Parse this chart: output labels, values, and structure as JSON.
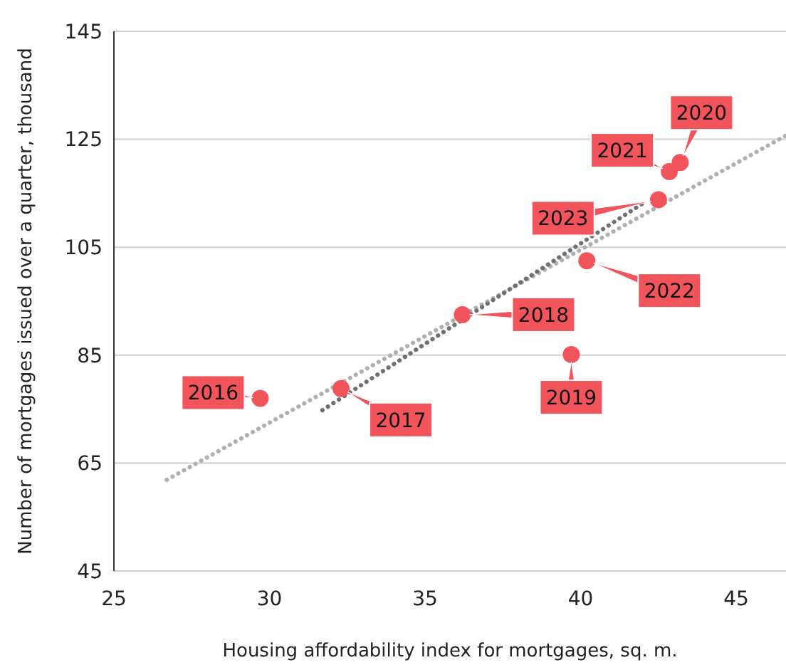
{
  "chart_data": {
    "type": "scatter",
    "xlabel": "Housing affordability index for mortgages, sq. m.",
    "ylabel": "Number of mortgages issued over a quarter, thousand",
    "xlim": [
      25,
      46.6
    ],
    "xticks": [
      25,
      30,
      35,
      40,
      45
    ],
    "ylim": [
      45,
      145
    ],
    "yticks": [
      45,
      65,
      85,
      105,
      125,
      145
    ],
    "grid": "y",
    "series": [
      {
        "type": "line",
        "line_style": "dotted",
        "color": "#b0b0b0",
        "x": [
          26.7,
          46.6
        ],
        "values": [
          61.9,
          125.7
        ]
      },
      {
        "type": "line",
        "line_style": "dotted",
        "color": "#707070",
        "x": [
          31.7,
          42.1
        ],
        "values": [
          74.8,
          113.5
        ]
      },
      {
        "marker": "circle",
        "color": "#f2545b",
        "x": [
          29.7,
          32.3,
          36.2,
          39.7,
          43.2,
          42.85,
          40.2,
          42.5
        ],
        "values": [
          77,
          78.8,
          92.5,
          85.1,
          120.7,
          119,
          102.5,
          113.8
        ]
      }
    ],
    "annotations": [
      {
        "text": "2016",
        "x": 29.7,
        "y": 77
      },
      {
        "text": "2017",
        "x": 32.3,
        "y": 78.8
      },
      {
        "text": "2018",
        "x": 36.2,
        "y": 92.5
      },
      {
        "text": "2019",
        "x": 39.7,
        "y": 85.1
      },
      {
        "text": "2020",
        "x": 43.2,
        "y": 120.7
      },
      {
        "text": "2021",
        "x": 42.85,
        "y": 119
      },
      {
        "text": "2022",
        "x": 40.2,
        "y": 102.5
      },
      {
        "text": "2023",
        "x": 42.5,
        "y": 113.8
      }
    ]
  }
}
